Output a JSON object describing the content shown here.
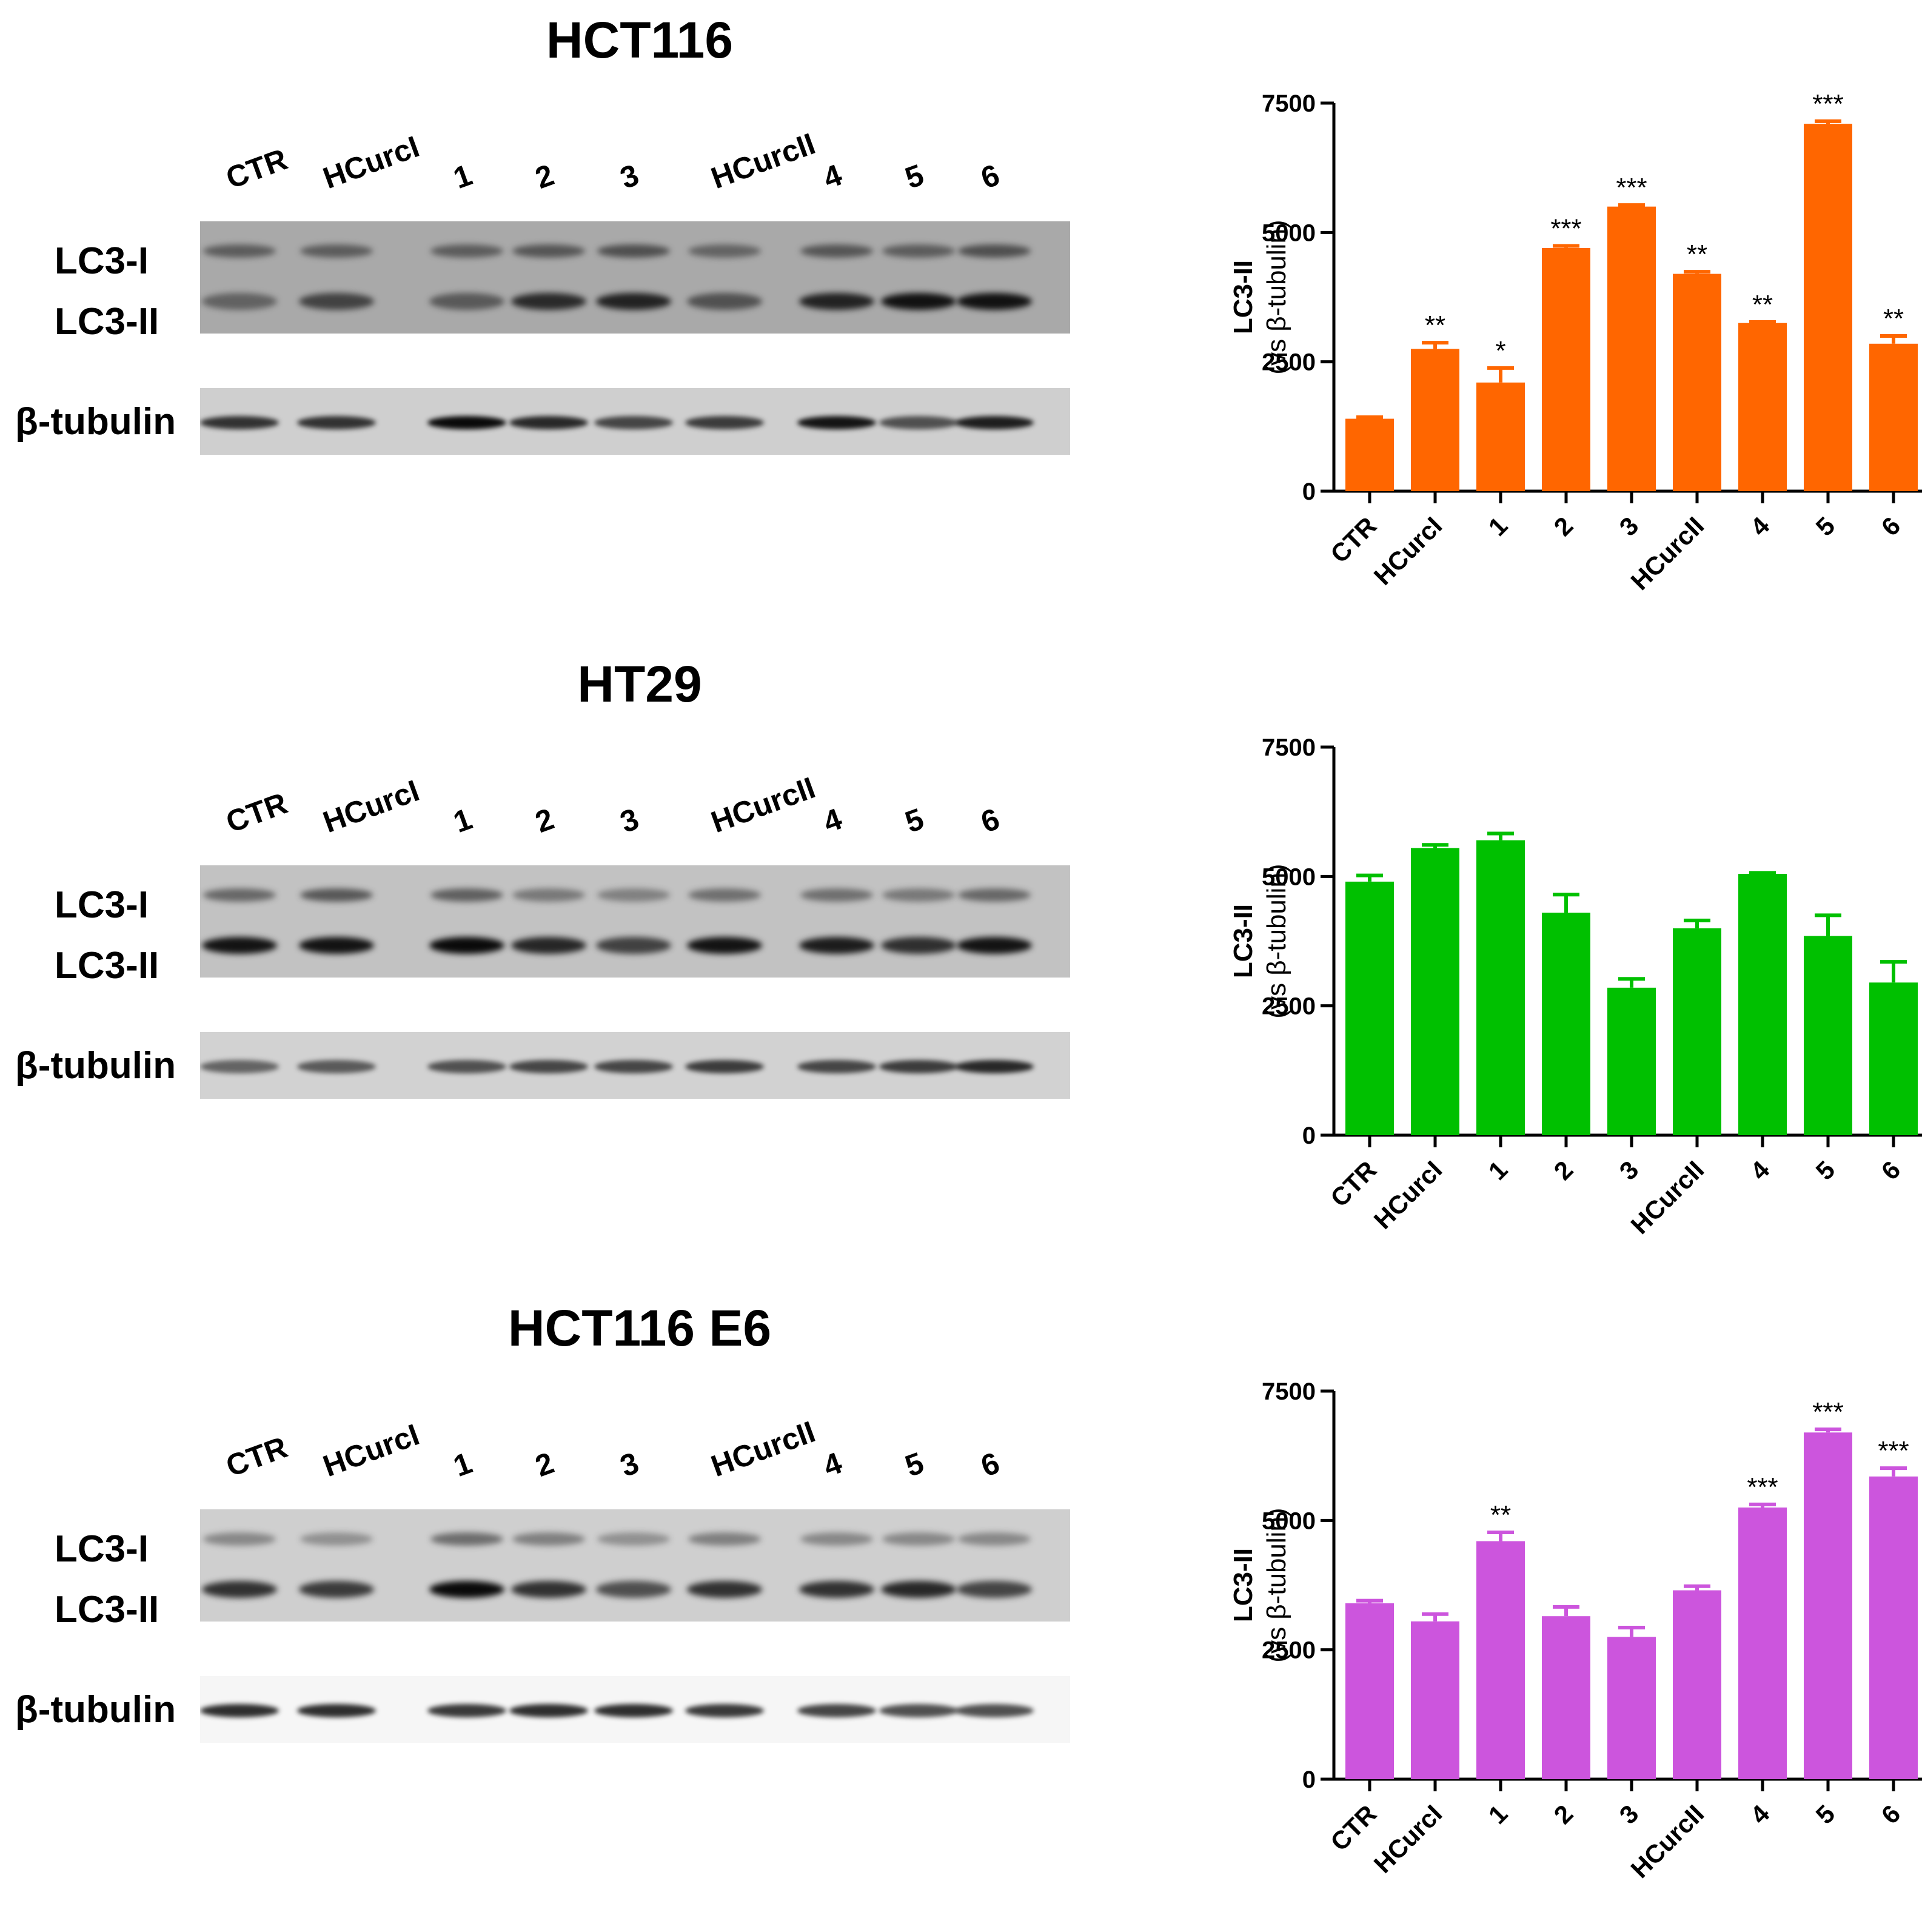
{
  "lanes": [
    "CTR",
    "HCurcI",
    "1",
    "2",
    "3",
    "HCurcII",
    "4",
    "5",
    "6"
  ],
  "band_labels": {
    "lc3_i": "LC3-I",
    "lc3_ii": "LC3-II",
    "tubulin": "β-tubulin"
  },
  "panels": [
    {
      "title": "HCT116",
      "blot_tone": "#a9a9a9",
      "tubulin_tone": "#cfcfcf"
    },
    {
      "title": "HT29",
      "blot_tone": "#c2c2c2",
      "tubulin_tone": "#d2d2d2"
    },
    {
      "title": "HCT116 E6",
      "blot_tone": "#cfcfcf",
      "tubulin_tone": "#f6f6f6"
    }
  ],
  "chart_data": [
    {
      "type": "bar",
      "categories": [
        "CTR",
        "HCurcI",
        "1",
        "2",
        "3",
        "HCurcII",
        "4",
        "5",
        "6"
      ],
      "values": [
        1400,
        2750,
        2100,
        4700,
        5500,
        4200,
        3250,
        7100,
        2850
      ],
      "errors": [
        30,
        120,
        280,
        40,
        30,
        40,
        20,
        50,
        150
      ],
      "annotations": [
        "",
        "**",
        "*",
        "***",
        "***",
        "**",
        "**",
        "***",
        "**"
      ],
      "ylabel": "LC3-II",
      "ylabel2": "(vs β-tubulin)",
      "ylim": [
        0,
        7500
      ],
      "yticks": [
        "0",
        "2500",
        "5000",
        "7500"
      ],
      "color": "#ff6600"
    },
    {
      "type": "bar",
      "categories": [
        "CTR",
        "HCurcI",
        "1",
        "2",
        "3",
        "HCurcII",
        "4",
        "5",
        "6"
      ],
      "values": [
        4900,
        5550,
        5700,
        4300,
        2850,
        4000,
        5050,
        3850,
        2950
      ],
      "errors": [
        120,
        60,
        130,
        350,
        170,
        150,
        20,
        400,
        400
      ],
      "annotations": [
        "",
        "",
        "",
        "",
        "",
        "",
        "",
        "",
        ""
      ],
      "ylabel": "LC3-II",
      "ylabel2": "(vs β-tubulin)",
      "ylim": [
        0,
        7500
      ],
      "yticks": [
        "0",
        "2500",
        "5000",
        "7500"
      ],
      "color": "#00c000"
    },
    {
      "type": "bar",
      "categories": [
        "CTR",
        "HCurcI",
        "1",
        "2",
        "3",
        "HCurcII",
        "4",
        "5",
        "6"
      ],
      "values": [
        3400,
        3050,
        4600,
        3150,
        2750,
        3650,
        5250,
        6700,
        5850
      ],
      "errors": [
        50,
        140,
        170,
        180,
        180,
        80,
        60,
        60,
        160
      ],
      "annotations": [
        "",
        "",
        "**",
        "",
        "",
        "",
        "***",
        "***",
        "***"
      ],
      "ylabel": "LC3-II",
      "ylabel2": "(vs β-tubulin)",
      "ylim": [
        0,
        7500
      ],
      "yticks": [
        "0",
        "2500",
        "5000",
        "7500"
      ],
      "color": "#cc55dd"
    }
  ]
}
